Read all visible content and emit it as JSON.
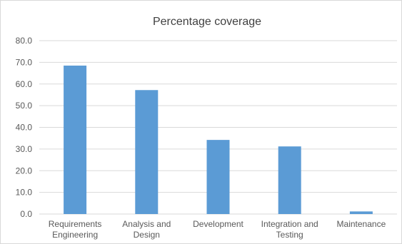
{
  "chart_data": {
    "type": "bar",
    "title": "Percentage coverage",
    "categories": [
      [
        "Requirements",
        "Engineering"
      ],
      [
        "Analysis and",
        "Design"
      ],
      [
        "Development"
      ],
      [
        "Integration and",
        "Testing"
      ],
      [
        "Maintenance"
      ]
    ],
    "values": [
      68.5,
      57.2,
      34.2,
      31.2,
      1.2
    ],
    "ylim": [
      0,
      80
    ],
    "ytick_step": 10,
    "ytick_labels": [
      "0.0",
      "10.0",
      "20.0",
      "30.0",
      "40.0",
      "50.0",
      "60.0",
      "70.0",
      "80.0"
    ],
    "xlabel": "",
    "ylabel": "",
    "grid": true,
    "legend": "none",
    "bar_color": "#5b9bd5",
    "grid_color": "#d9d9d9"
  }
}
